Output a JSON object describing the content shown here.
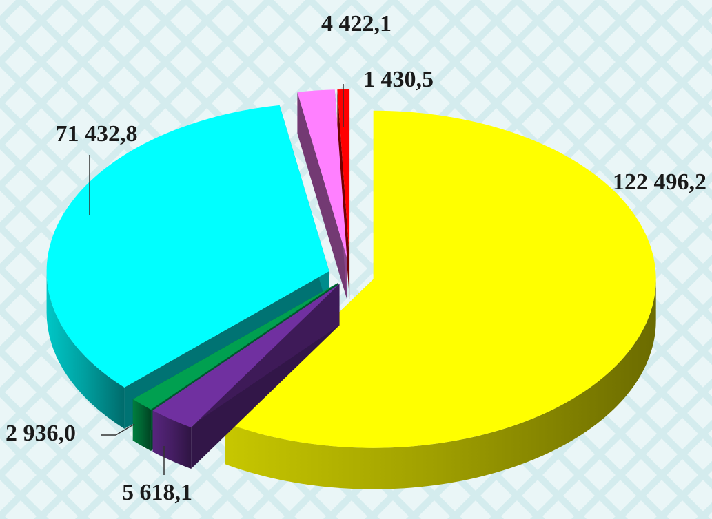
{
  "chart_data": {
    "type": "pie",
    "style": "3d-exploded",
    "title": "",
    "legend": "none",
    "slices": [
      {
        "label": "122 496,2",
        "value": 122496.2,
        "color": "#ffff00"
      },
      {
        "label": "5 618,1",
        "value": 5618.1,
        "color": "#7030a0"
      },
      {
        "label": "2 936,0",
        "value": 2936.0,
        "color": "#00a050"
      },
      {
        "label": "71 432,8",
        "value": 71432.8,
        "color": "#00ffff"
      },
      {
        "label": "4 422,1",
        "value": 4422.1,
        "color": "#ff80ff"
      },
      {
        "label": "1 430,5",
        "value": 1430.5,
        "color": "#ff0000"
      }
    ]
  }
}
